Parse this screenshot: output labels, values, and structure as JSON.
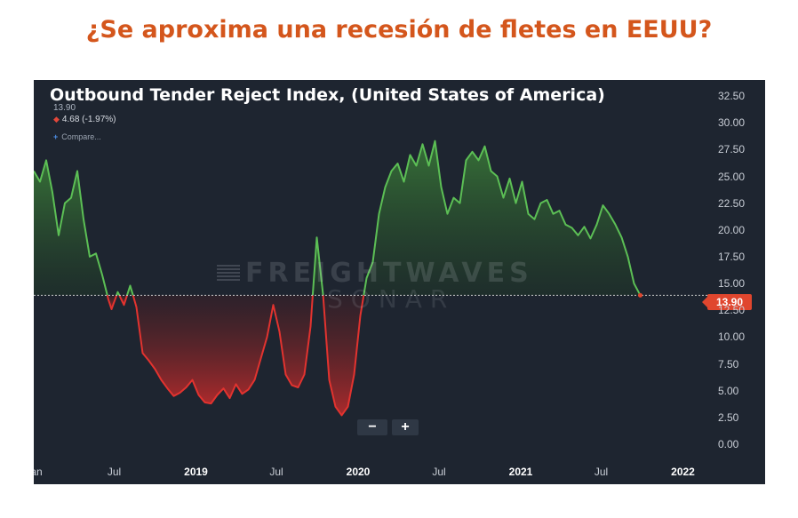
{
  "heading": "¿Se aproxima una recesión de fletes en EEUU?",
  "chart": {
    "title": "Outbound Tender Reject Index, (United States of America)",
    "value_line": "13.90",
    "change_line": "4.68 (-1.97%)",
    "compare_label": "Compare...",
    "watermark_main": "FREIGHTWAVES",
    "watermark_sub": "SONAR",
    "zoom_out_label": "−",
    "zoom_in_label": "+",
    "last_value_label": "13.90"
  },
  "colors": {
    "background": "#1e2530",
    "above_line": "#5cbf55",
    "below_line": "#e2332f",
    "reference_line": "#c8c8c8",
    "heading": "#d4561c"
  },
  "chart_data": {
    "type": "area",
    "title": "Outbound Tender Reject Index, (United States of America)",
    "reference_value": 13.9,
    "ylim": [
      -1.5,
      34
    ],
    "y_ticks": [
      "32.50",
      "30.00",
      "27.50",
      "25.00",
      "22.50",
      "20.00",
      "17.50",
      "15.00",
      "12.50",
      "10.00",
      "7.50",
      "5.00",
      "2.50",
      "0.00"
    ],
    "x_labels": [
      "Jan",
      "Jul",
      "2019",
      "Jul",
      "2020",
      "Jul",
      "2021",
      "Jul",
      "2022"
    ],
    "x_label_dates": [
      "2018-01-01",
      "2018-07-01",
      "2019-01-01",
      "2019-07-01",
      "2020-01-01",
      "2020-07-01",
      "2021-01-01",
      "2021-07-01",
      "2022-01-01"
    ],
    "x_range": [
      "2018-01-01",
      "2022-03-01"
    ],
    "grid": false,
    "series": [
      {
        "points": [
          [
            "2018-01-01",
            25.5
          ],
          [
            "2018-01-15",
            24.5
          ],
          [
            "2018-01-29",
            26.5
          ],
          [
            "2018-02-12",
            23.5
          ],
          [
            "2018-02-26",
            19.5
          ],
          [
            "2018-03-12",
            22.5
          ],
          [
            "2018-03-26",
            23.0
          ],
          [
            "2018-04-09",
            25.5
          ],
          [
            "2018-04-23",
            21.0
          ],
          [
            "2018-05-07",
            17.5
          ],
          [
            "2018-05-21",
            17.8
          ],
          [
            "2018-06-04",
            15.8
          ],
          [
            "2018-06-18",
            13.5
          ],
          [
            "2018-06-25",
            12.6
          ],
          [
            "2018-07-09",
            14.2
          ],
          [
            "2018-07-23",
            13.0
          ],
          [
            "2018-08-06",
            14.8
          ],
          [
            "2018-08-20",
            12.8
          ],
          [
            "2018-09-03",
            8.5
          ],
          [
            "2018-09-17",
            7.8
          ],
          [
            "2018-10-01",
            7.0
          ],
          [
            "2018-10-15",
            6.0
          ],
          [
            "2018-10-29",
            5.2
          ],
          [
            "2018-11-12",
            4.5
          ],
          [
            "2018-11-26",
            4.8
          ],
          [
            "2018-12-10",
            5.3
          ],
          [
            "2018-12-24",
            6.0
          ],
          [
            "2019-01-07",
            4.6
          ],
          [
            "2019-01-21",
            3.9
          ],
          [
            "2019-02-04",
            3.8
          ],
          [
            "2019-02-18",
            4.6
          ],
          [
            "2019-03-04",
            5.2
          ],
          [
            "2019-03-18",
            4.3
          ],
          [
            "2019-04-01",
            5.6
          ],
          [
            "2019-04-15",
            4.7
          ],
          [
            "2019-04-29",
            5.1
          ],
          [
            "2019-05-13",
            6.0
          ],
          [
            "2019-05-27",
            8.0
          ],
          [
            "2019-06-10",
            10.0
          ],
          [
            "2019-06-24",
            13.0
          ],
          [
            "2019-07-08",
            10.5
          ],
          [
            "2019-07-22",
            6.5
          ],
          [
            "2019-08-05",
            5.5
          ],
          [
            "2019-08-19",
            5.3
          ],
          [
            "2019-09-02",
            6.5
          ],
          [
            "2019-09-16",
            11.0
          ],
          [
            "2019-09-30",
            19.3
          ],
          [
            "2019-10-14",
            14.0
          ],
          [
            "2019-10-28",
            6.0
          ],
          [
            "2019-11-11",
            3.5
          ],
          [
            "2019-11-25",
            2.7
          ],
          [
            "2019-12-09",
            3.5
          ],
          [
            "2019-12-23",
            6.5
          ],
          [
            "2020-01-06",
            12.0
          ],
          [
            "2020-01-20",
            15.5
          ],
          [
            "2020-02-03",
            17.0
          ],
          [
            "2020-02-17",
            21.5
          ],
          [
            "2020-03-02",
            24.0
          ],
          [
            "2020-03-16",
            25.5
          ],
          [
            "2020-03-30",
            26.2
          ],
          [
            "2020-04-13",
            24.5
          ],
          [
            "2020-04-27",
            27.0
          ],
          [
            "2020-05-11",
            26.0
          ],
          [
            "2020-05-25",
            28.0
          ],
          [
            "2020-06-08",
            26.0
          ],
          [
            "2020-06-22",
            28.3
          ],
          [
            "2020-07-06",
            24.0
          ],
          [
            "2020-07-20",
            21.5
          ],
          [
            "2020-08-03",
            23.0
          ],
          [
            "2020-08-17",
            22.5
          ],
          [
            "2020-08-31",
            26.5
          ],
          [
            "2020-09-14",
            27.3
          ],
          [
            "2020-09-28",
            26.5
          ],
          [
            "2020-10-12",
            27.8
          ],
          [
            "2020-10-26",
            25.5
          ],
          [
            "2020-11-09",
            25.0
          ],
          [
            "2020-11-23",
            23.0
          ],
          [
            "2020-12-07",
            24.8
          ],
          [
            "2020-12-21",
            22.5
          ],
          [
            "2021-01-04",
            24.5
          ],
          [
            "2021-01-18",
            21.5
          ],
          [
            "2021-02-01",
            21.0
          ],
          [
            "2021-02-15",
            22.5
          ],
          [
            "2021-03-01",
            22.8
          ],
          [
            "2021-03-15",
            21.5
          ],
          [
            "2021-03-29",
            21.8
          ],
          [
            "2021-04-12",
            20.5
          ],
          [
            "2021-04-26",
            20.2
          ],
          [
            "2021-05-10",
            19.5
          ],
          [
            "2021-05-24",
            20.3
          ],
          [
            "2021-06-07",
            19.2
          ],
          [
            "2021-06-21",
            20.5
          ],
          [
            "2021-07-05",
            22.3
          ],
          [
            "2021-07-19",
            21.5
          ],
          [
            "2021-08-02",
            20.5
          ],
          [
            "2021-08-16",
            19.3
          ],
          [
            "2021-08-30",
            17.5
          ],
          [
            "2021-09-13",
            15.0
          ],
          [
            "2021-09-27",
            13.9
          ]
        ]
      }
    ]
  }
}
